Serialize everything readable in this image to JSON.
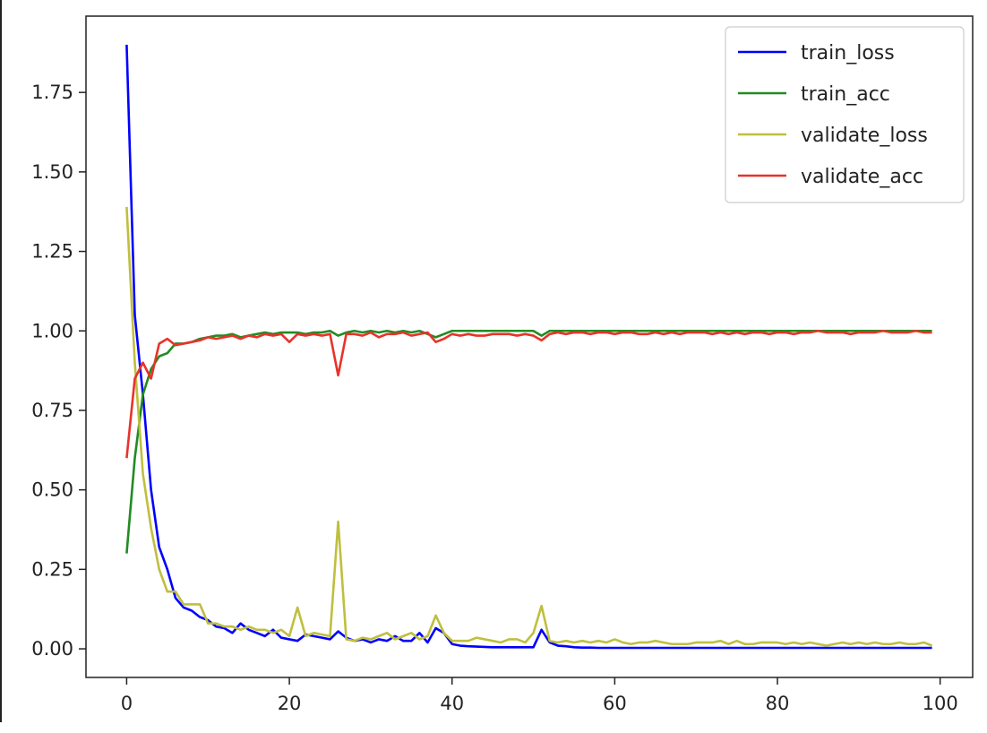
{
  "chart_data": {
    "type": "line",
    "title": "",
    "xlabel": "",
    "ylabel": "",
    "xlim": [
      -5,
      104
    ],
    "ylim": [
      -0.09,
      1.99
    ],
    "xticks": [
      0,
      20,
      40,
      60,
      80,
      100
    ],
    "yticks": [
      0.0,
      0.25,
      0.5,
      0.75,
      1.0,
      1.25,
      1.5,
      1.75
    ],
    "xtick_labels": [
      "0",
      "20",
      "40",
      "60",
      "80",
      "100"
    ],
    "ytick_labels": [
      "0.00",
      "0.25",
      "0.50",
      "0.75",
      "1.00",
      "1.25",
      "1.50",
      "1.75"
    ],
    "grid": false,
    "legend_position": "top-right",
    "series": [
      {
        "name": "train_loss",
        "color": "#0000ff",
        "values": [
          1.9,
          1.05,
          0.8,
          0.5,
          0.32,
          0.25,
          0.16,
          0.13,
          0.12,
          0.1,
          0.09,
          0.07,
          0.065,
          0.05,
          0.08,
          0.06,
          0.05,
          0.04,
          0.06,
          0.035,
          0.03,
          0.025,
          0.045,
          0.04,
          0.035,
          0.03,
          0.055,
          0.035,
          0.025,
          0.03,
          0.02,
          0.03,
          0.025,
          0.04,
          0.025,
          0.025,
          0.05,
          0.02,
          0.065,
          0.05,
          0.015,
          0.01,
          0.008,
          0.007,
          0.006,
          0.005,
          0.005,
          0.005,
          0.005,
          0.005,
          0.005,
          0.06,
          0.02,
          0.01,
          0.008,
          0.005,
          0.004,
          0.004,
          0.003,
          0.003,
          0.003,
          0.003,
          0.003,
          0.003,
          0.003,
          0.003,
          0.003,
          0.003,
          0.003,
          0.003,
          0.003,
          0.003,
          0.003,
          0.003,
          0.003,
          0.003,
          0.003,
          0.003,
          0.003,
          0.003,
          0.003,
          0.003,
          0.003,
          0.003,
          0.003,
          0.003,
          0.003,
          0.003,
          0.003,
          0.003,
          0.003,
          0.003,
          0.003,
          0.003,
          0.003,
          0.003,
          0.003,
          0.003,
          0.003,
          0.003
        ]
      },
      {
        "name": "train_acc",
        "color": "#228b22",
        "values": [
          0.3,
          0.6,
          0.8,
          0.88,
          0.92,
          0.93,
          0.96,
          0.96,
          0.965,
          0.975,
          0.98,
          0.985,
          0.985,
          0.99,
          0.98,
          0.985,
          0.99,
          0.995,
          0.99,
          0.995,
          0.995,
          0.995,
          0.99,
          0.995,
          0.995,
          1.0,
          0.985,
          0.995,
          1.0,
          0.995,
          1.0,
          0.995,
          1.0,
          0.995,
          1.0,
          0.995,
          1.0,
          0.99,
          0.98,
          0.99,
          1.0,
          1.0,
          1.0,
          1.0,
          1.0,
          1.0,
          1.0,
          1.0,
          1.0,
          1.0,
          1.0,
          0.985,
          1.0,
          1.0,
          1.0,
          1.0,
          1.0,
          1.0,
          1.0,
          1.0,
          1.0,
          1.0,
          1.0,
          1.0,
          1.0,
          1.0,
          1.0,
          1.0,
          1.0,
          1.0,
          1.0,
          1.0,
          1.0,
          1.0,
          1.0,
          1.0,
          1.0,
          1.0,
          1.0,
          1.0,
          1.0,
          1.0,
          1.0,
          1.0,
          1.0,
          1.0,
          1.0,
          1.0,
          1.0,
          1.0,
          1.0,
          1.0,
          1.0,
          1.0,
          1.0,
          1.0,
          1.0,
          1.0,
          1.0,
          1.0
        ]
      },
      {
        "name": "validate_loss",
        "color": "#bfbf3f",
        "values": [
          1.39,
          0.9,
          0.55,
          0.38,
          0.25,
          0.18,
          0.18,
          0.14,
          0.14,
          0.14,
          0.08,
          0.08,
          0.07,
          0.07,
          0.06,
          0.07,
          0.06,
          0.06,
          0.05,
          0.06,
          0.04,
          0.13,
          0.04,
          0.05,
          0.045,
          0.04,
          0.4,
          0.03,
          0.025,
          0.035,
          0.03,
          0.04,
          0.05,
          0.03,
          0.04,
          0.05,
          0.03,
          0.04,
          0.105,
          0.05,
          0.025,
          0.025,
          0.025,
          0.035,
          0.03,
          0.025,
          0.02,
          0.03,
          0.03,
          0.02,
          0.05,
          0.135,
          0.025,
          0.02,
          0.025,
          0.02,
          0.025,
          0.02,
          0.025,
          0.02,
          0.03,
          0.02,
          0.015,
          0.02,
          0.02,
          0.025,
          0.02,
          0.015,
          0.015,
          0.015,
          0.02,
          0.02,
          0.02,
          0.025,
          0.015,
          0.025,
          0.015,
          0.015,
          0.02,
          0.02,
          0.02,
          0.015,
          0.02,
          0.015,
          0.02,
          0.015,
          0.01,
          0.015,
          0.02,
          0.015,
          0.02,
          0.015,
          0.02,
          0.015,
          0.015,
          0.02,
          0.015,
          0.015,
          0.02,
          0.01
        ]
      },
      {
        "name": "validate_acc",
        "color": "#e8332a",
        "values": [
          0.6,
          0.85,
          0.9,
          0.85,
          0.96,
          0.975,
          0.955,
          0.96,
          0.965,
          0.97,
          0.98,
          0.975,
          0.98,
          0.985,
          0.975,
          0.985,
          0.98,
          0.99,
          0.985,
          0.99,
          0.965,
          0.99,
          0.985,
          0.99,
          0.985,
          0.99,
          0.86,
          0.99,
          0.99,
          0.985,
          0.995,
          0.98,
          0.99,
          0.99,
          0.995,
          0.985,
          0.99,
          0.995,
          0.965,
          0.975,
          0.99,
          0.985,
          0.99,
          0.985,
          0.985,
          0.99,
          0.99,
          0.99,
          0.985,
          0.99,
          0.985,
          0.97,
          0.99,
          0.995,
          0.99,
          0.995,
          0.995,
          0.99,
          0.995,
          0.995,
          0.99,
          0.995,
          0.995,
          0.99,
          0.99,
          0.995,
          0.99,
          0.995,
          0.99,
          0.995,
          0.995,
          0.995,
          0.99,
          0.995,
          0.99,
          0.995,
          0.99,
          0.995,
          0.995,
          0.99,
          0.995,
          0.995,
          0.99,
          0.995,
          0.995,
          1.0,
          0.995,
          0.995,
          0.995,
          0.99,
          0.995,
          0.995,
          0.995,
          1.0,
          0.995,
          0.995,
          0.995,
          1.0,
          0.995,
          0.995
        ]
      }
    ]
  }
}
